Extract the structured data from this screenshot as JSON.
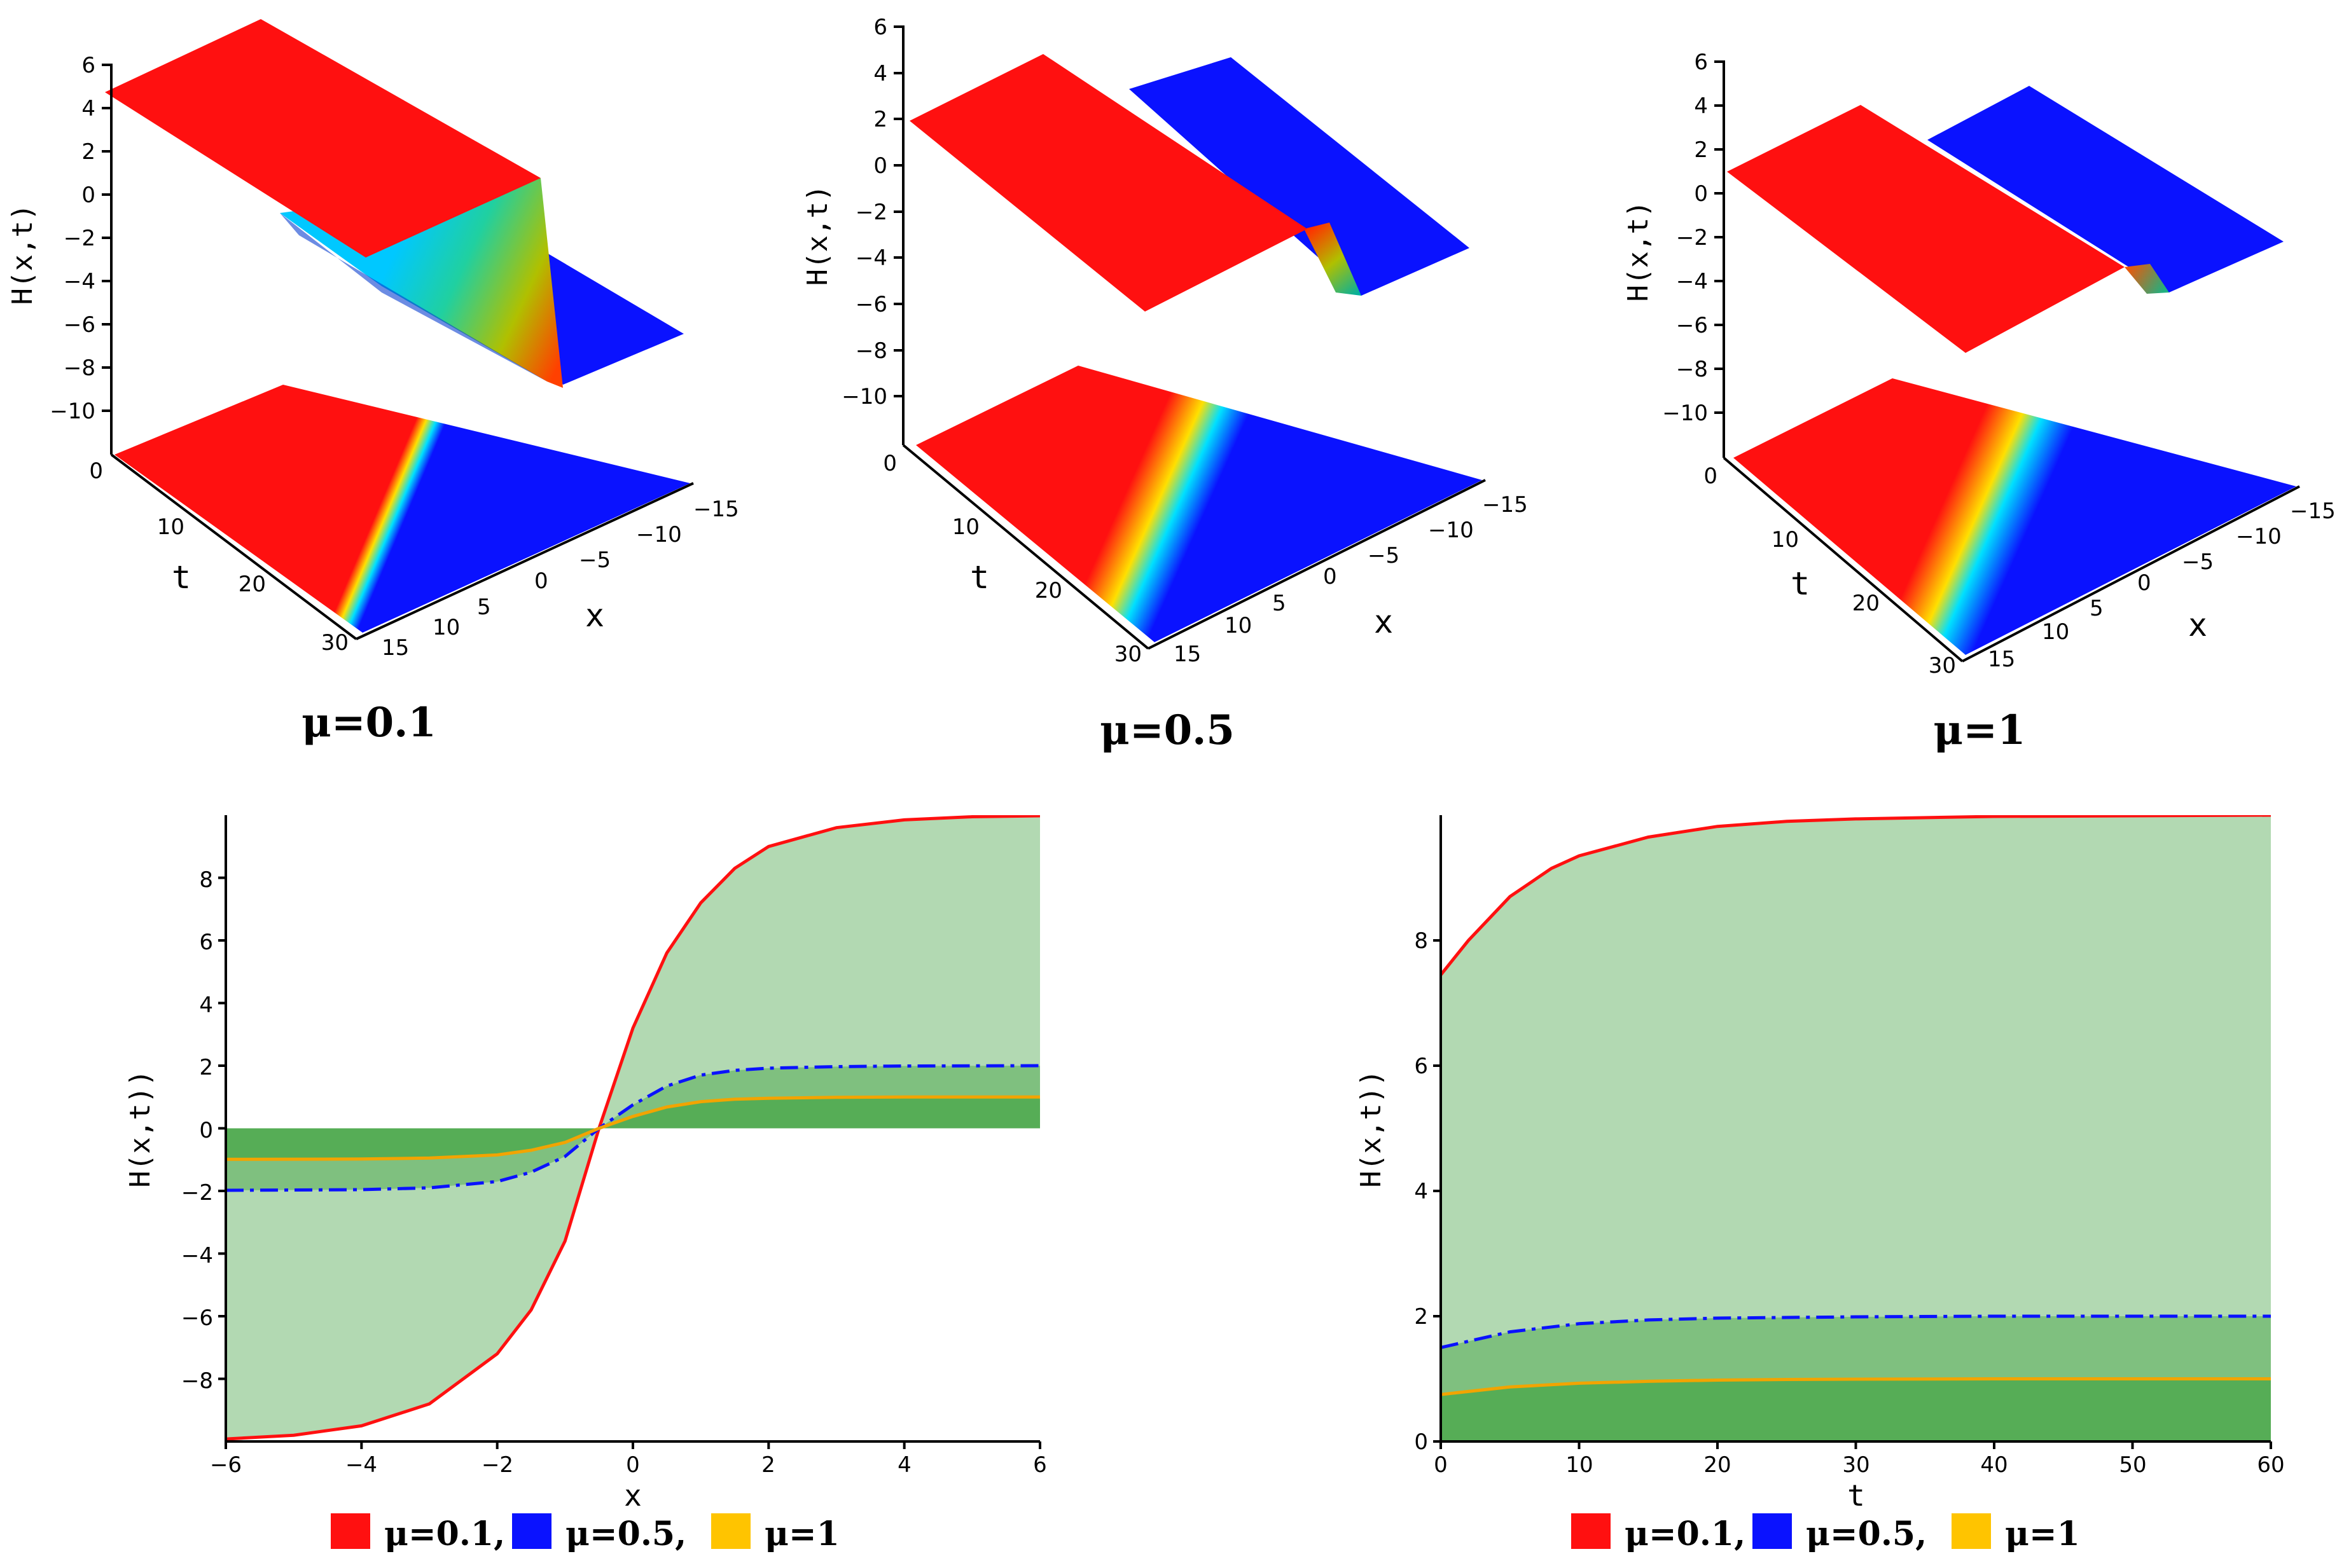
{
  "colors": {
    "red": "#ff1010",
    "blue": "#0a12ff",
    "orange": "#f2a400",
    "swatch_yellow": "#ffc400",
    "fill_light": "#b2d9b2",
    "fill_mid": "#7fc07f",
    "fill_dark": "#56ad56",
    "axis": "#000000"
  },
  "chart_data": [
    {
      "type": "surface3d",
      "caption": "μ=0.1",
      "mu": 0.1,
      "zlabel": "H(x,t)",
      "xlabel": "x",
      "tlabel": "t",
      "zticks": [
        "6",
        "4",
        "2",
        "0",
        "−2",
        "−4",
        "−6",
        "−8",
        "−10"
      ],
      "tticks": [
        "0",
        "10",
        "20",
        "30"
      ],
      "xticks": [
        "−15",
        "−10",
        "−5",
        "0",
        "5",
        "10",
        "15"
      ],
      "zlim": [
        -12,
        6
      ],
      "xlim": [
        -15,
        15
      ],
      "tlim": [
        0,
        30
      ]
    },
    {
      "type": "surface3d",
      "caption": "μ=0.5",
      "mu": 0.5,
      "zlabel": "H(x,t)",
      "xlabel": "x",
      "tlabel": "t",
      "zticks": [
        "6",
        "4",
        "2",
        "0",
        "−2",
        "−4",
        "−6",
        "−8",
        "−10"
      ],
      "tticks": [
        "0",
        "10",
        "20",
        "30"
      ],
      "xticks": [
        "−15",
        "−10",
        "−5",
        "0",
        "5",
        "10",
        "15"
      ],
      "zlim": [
        -12,
        6
      ],
      "xlim": [
        -15,
        15
      ],
      "tlim": [
        0,
        30
      ]
    },
    {
      "type": "surface3d",
      "caption": "μ=1",
      "mu": 1,
      "zlabel": "H(x,t)",
      "xlabel": "x",
      "tlabel": "t",
      "zticks": [
        "6",
        "4",
        "2",
        "0",
        "−2",
        "−4",
        "−6",
        "−8",
        "−10"
      ],
      "tticks": [
        "0",
        "10",
        "20",
        "30"
      ],
      "xticks": [
        "−15",
        "−10",
        "−5",
        "0",
        "5",
        "10",
        "15"
      ],
      "zlim": [
        -12,
        6
      ],
      "xlim": [
        -15,
        15
      ],
      "tlim": [
        0,
        30
      ]
    },
    {
      "type": "line",
      "xlabel": "x",
      "ylabel": "H(x,t))",
      "xlim": [
        -6,
        6
      ],
      "ylim": [
        -10,
        10
      ],
      "xticks": [
        -6,
        -4,
        -2,
        0,
        2,
        4,
        6
      ],
      "yticks": [
        -8,
        -6,
        -4,
        -2,
        0,
        2,
        4,
        6,
        8
      ],
      "x_tick_labels": [
        "−6",
        "−4",
        "−2",
        "0",
        "2",
        "4",
        "6"
      ],
      "y_tick_labels": [
        "−8",
        "−6",
        "−4",
        "−2",
        "0",
        "2",
        "4",
        "6",
        "8"
      ],
      "filled_to_zero": true,
      "series": [
        {
          "name": "μ=0.1",
          "style": "solid",
          "color": "#ff1010",
          "x": [
            -6,
            -5,
            -4,
            -3,
            -2,
            -1.5,
            -1,
            -0.5,
            0,
            0.5,
            1,
            1.5,
            2,
            3,
            4,
            5,
            6
          ],
          "y": [
            -9.92,
            -9.8,
            -9.5,
            -8.8,
            -7.2,
            -5.8,
            -3.6,
            0,
            3.2,
            5.6,
            7.2,
            8.3,
            9.0,
            9.6,
            9.85,
            9.95,
            9.98
          ]
        },
        {
          "name": "μ=0.5,",
          "style": "dashdot",
          "color": "#0a12ff",
          "x": [
            -6,
            -4,
            -3,
            -2,
            -1.5,
            -1,
            -0.5,
            0,
            0.5,
            1,
            1.5,
            2,
            3,
            4,
            6
          ],
          "y": [
            -1.98,
            -1.96,
            -1.9,
            -1.7,
            -1.4,
            -0.9,
            0,
            0.75,
            1.35,
            1.7,
            1.85,
            1.92,
            1.97,
            1.99,
            2.0
          ]
        },
        {
          "name": "μ=1",
          "style": "solid",
          "color": "#f2a400",
          "x": [
            -6,
            -4,
            -3,
            -2,
            -1.5,
            -1,
            -0.5,
            0,
            0.5,
            1,
            1.5,
            2,
            3,
            4,
            6
          ],
          "y": [
            -0.99,
            -0.98,
            -0.95,
            -0.85,
            -0.7,
            -0.45,
            0,
            0.38,
            0.68,
            0.85,
            0.93,
            0.96,
            0.99,
            1.0,
            1.0
          ]
        }
      ],
      "legend": [
        "μ=0.1,",
        "μ=0.5,",
        "μ=1"
      ]
    },
    {
      "type": "line",
      "xlabel": "t",
      "ylabel": "H(x,t))",
      "xlim": [
        0,
        60
      ],
      "ylim": [
        0,
        10
      ],
      "xticks": [
        0,
        10,
        20,
        30,
        40,
        50,
        60
      ],
      "yticks": [
        0,
        2,
        4,
        6,
        8
      ],
      "x_tick_labels": [
        "0",
        "10",
        "20",
        "30",
        "40",
        "50",
        "60"
      ],
      "y_tick_labels": [
        "0",
        "2",
        "4",
        "6",
        "8"
      ],
      "filled_to_zero": true,
      "series": [
        {
          "name": "μ=0.1",
          "style": "solid",
          "color": "#ff1010",
          "x": [
            0,
            2,
            5,
            8,
            10,
            15,
            20,
            25,
            30,
            40,
            50,
            60
          ],
          "y": [
            7.45,
            8.0,
            8.7,
            9.15,
            9.35,
            9.65,
            9.82,
            9.9,
            9.94,
            9.98,
            9.99,
            10.0
          ]
        },
        {
          "name": "μ=0.5,",
          "style": "dashdot",
          "color": "#0a12ff",
          "x": [
            0,
            5,
            10,
            15,
            20,
            25,
            30,
            40,
            50,
            60
          ],
          "y": [
            1.5,
            1.75,
            1.88,
            1.94,
            1.97,
            1.98,
            1.99,
            2.0,
            2.0,
            2.0
          ]
        },
        {
          "name": "μ=1",
          "style": "solid",
          "color": "#f2a400",
          "x": [
            0,
            5,
            10,
            15,
            20,
            25,
            30,
            40,
            50,
            60
          ],
          "y": [
            0.75,
            0.87,
            0.93,
            0.96,
            0.98,
            0.99,
            0.995,
            1.0,
            1.0,
            1.0
          ]
        }
      ],
      "legend": [
        "μ=0.1,",
        "μ=0.5,",
        "μ=1"
      ]
    }
  ]
}
